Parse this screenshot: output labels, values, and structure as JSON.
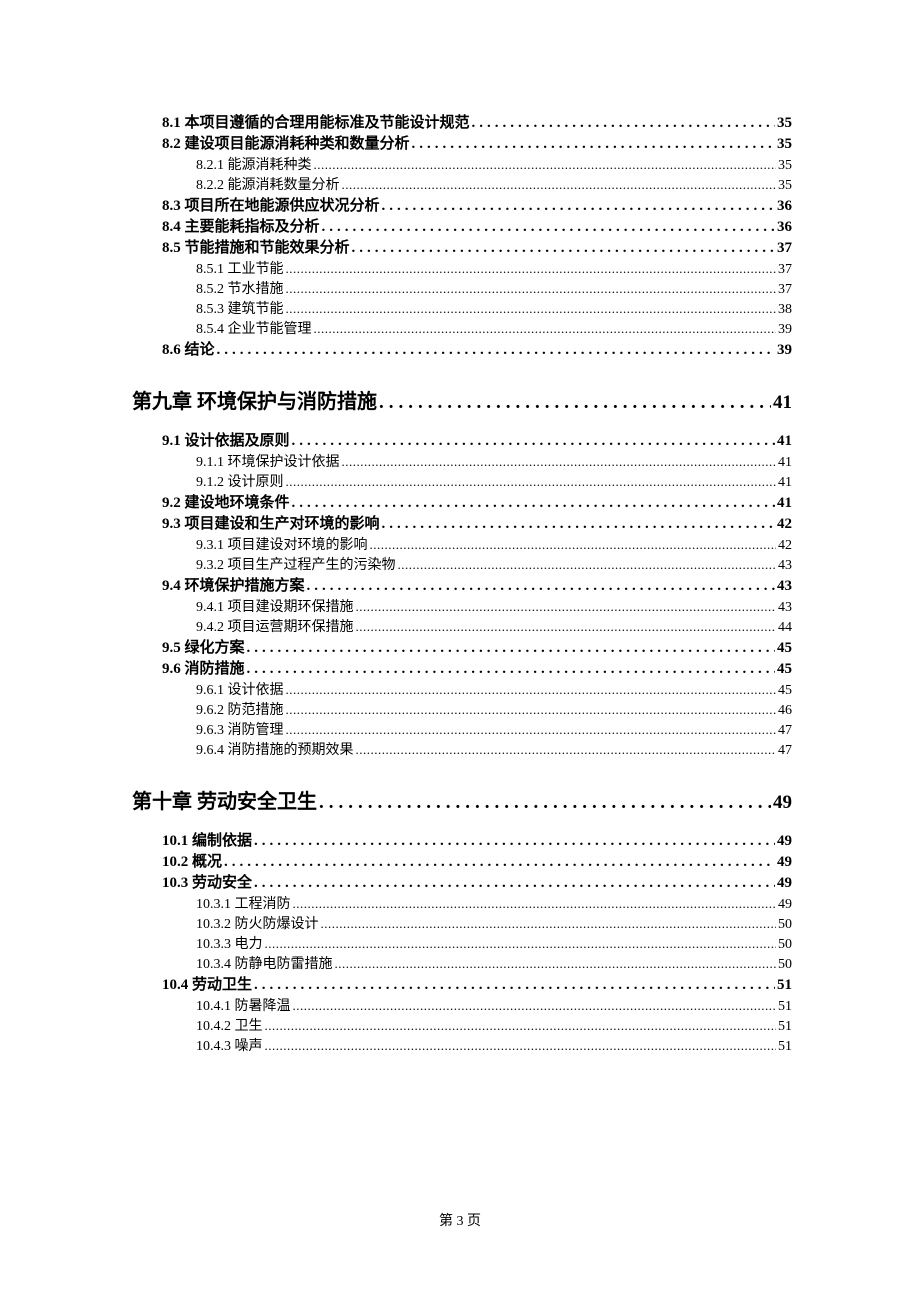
{
  "colors": {
    "text": "#000000",
    "background": "#ffffff"
  },
  "typography": {
    "chapter_fontsize": 20,
    "section_fontsize": 15,
    "sub_fontsize": 14,
    "footer_fontsize": 14,
    "body_font": "SimSun",
    "chapter_font": "KaiTi"
  },
  "footer": "第 3 页",
  "toc": [
    {
      "level": "section",
      "label": "8.1 本项目遵循的合理用能标准及节能设计规范",
      "page": "35"
    },
    {
      "level": "section",
      "label": "8.2 建设项目能源消耗种类和数量分析",
      "page": "35"
    },
    {
      "level": "sub",
      "label": "8.2.1 能源消耗种类",
      "page": "35"
    },
    {
      "level": "sub",
      "label": "8.2.2 能源消耗数量分析",
      "page": "35"
    },
    {
      "level": "section",
      "label": "8.3 项目所在地能源供应状况分析",
      "page": "36"
    },
    {
      "level": "section",
      "label": "8.4 主要能耗指标及分析",
      "page": "36"
    },
    {
      "level": "section",
      "label": "8.5 节能措施和节能效果分析",
      "page": "37"
    },
    {
      "level": "sub",
      "label": "8.5.1 工业节能",
      "page": "37"
    },
    {
      "level": "sub",
      "label": "8.5.2 节水措施",
      "page": "37"
    },
    {
      "level": "sub",
      "label": "8.5.3 建筑节能",
      "page": "38"
    },
    {
      "level": "sub",
      "label": "8.5.4 企业节能管理",
      "page": "39"
    },
    {
      "level": "section",
      "label": "8.6 结论",
      "page": "39"
    },
    {
      "level": "chapter",
      "label": "第九章  环境保护与消防措施",
      "page": "41"
    },
    {
      "level": "section",
      "label": "9.1 设计依据及原则",
      "page": "41"
    },
    {
      "level": "sub",
      "label": "9.1.1 环境保护设计依据",
      "page": "41"
    },
    {
      "level": "sub",
      "label": "9.1.2 设计原则",
      "page": "41"
    },
    {
      "level": "section",
      "label": "9.2 建设地环境条件",
      "page": "41"
    },
    {
      "level": "section",
      "label": "9.3  项目建设和生产对环境的影响",
      "page": "42"
    },
    {
      "level": "sub",
      "label": "9.3.1  项目建设对环境的影响",
      "page": "42"
    },
    {
      "level": "sub",
      "label": "9.3.2 项目生产过程产生的污染物",
      "page": "43"
    },
    {
      "level": "section",
      "label": "9.4  环境保护措施方案",
      "page": "43"
    },
    {
      "level": "sub",
      "label": "9.4.1  项目建设期环保措施",
      "page": "43"
    },
    {
      "level": "sub",
      "label": "9.4.2  项目运营期环保措施",
      "page": "44"
    },
    {
      "level": "section",
      "label": "9.5 绿化方案",
      "page": "45"
    },
    {
      "level": "section",
      "label": "9.6 消防措施",
      "page": "45"
    },
    {
      "level": "sub",
      "label": "9.6.1 设计依据",
      "page": "45"
    },
    {
      "level": "sub",
      "label": "9.6.2 防范措施",
      "page": "46"
    },
    {
      "level": "sub",
      "label": "9.6.3 消防管理",
      "page": "47"
    },
    {
      "level": "sub",
      "label": "9.6.4 消防措施的预期效果",
      "page": "47"
    },
    {
      "level": "chapter",
      "label": "第十章  劳动安全卫生",
      "page": "49"
    },
    {
      "level": "section",
      "label": "10.1  编制依据",
      "page": "49"
    },
    {
      "level": "section",
      "label": "10.2 概况",
      "page": "49"
    },
    {
      "level": "section",
      "label": "10.3  劳动安全",
      "page": "49"
    },
    {
      "level": "sub",
      "label": "10.3.1 工程消防",
      "page": "49"
    },
    {
      "level": "sub",
      "label": "10.3.2 防火防爆设计",
      "page": "50"
    },
    {
      "level": "sub",
      "label": "10.3.3 电力",
      "page": "50"
    },
    {
      "level": "sub",
      "label": "10.3.4 防静电防雷措施",
      "page": "50"
    },
    {
      "level": "section",
      "label": "10.4 劳动卫生",
      "page": "51"
    },
    {
      "level": "sub",
      "label": "10.4.1 防暑降温",
      "page": "51"
    },
    {
      "level": "sub",
      "label": "10.4.2 卫生",
      "page": "51"
    },
    {
      "level": "sub",
      "label": "10.4.3 噪声",
      "page": "51"
    }
  ]
}
